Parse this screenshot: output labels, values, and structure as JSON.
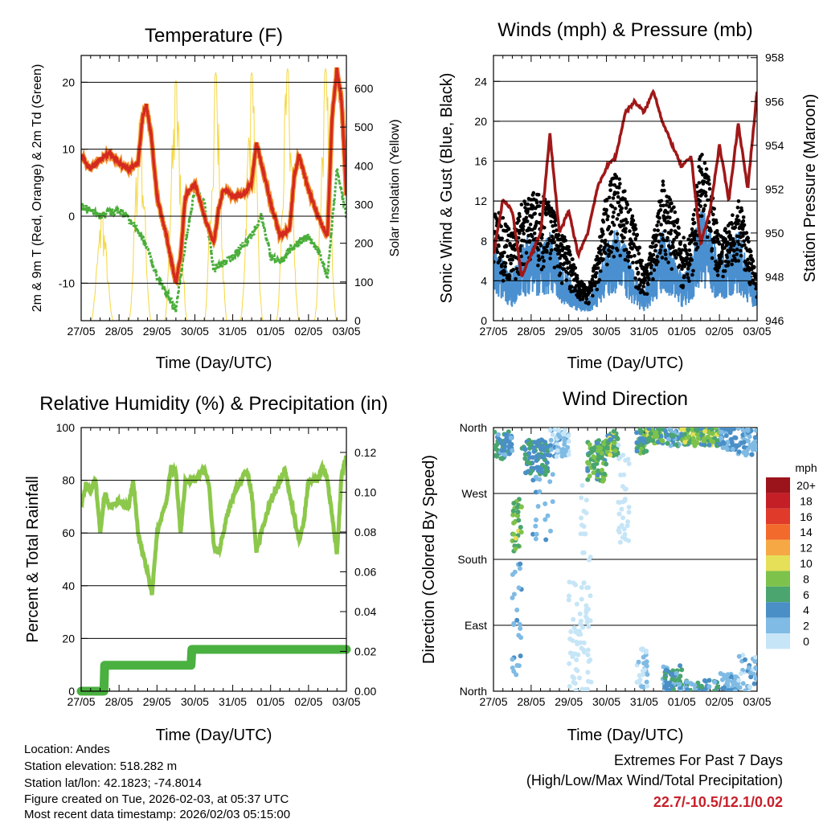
{
  "chart_data": [
    {
      "type": "line",
      "title": "Temperature (F)",
      "xlabel": "Time (Day/UTC)",
      "ylabel": "2m & 9m T (Red, Orange) & 2m Td (Green)",
      "ylabel_right": "Solar Insolation (Yellow)",
      "xlim": [
        0,
        7
      ],
      "ylim": [
        -15.6,
        24
      ],
      "ylim_right": [
        0,
        685
      ],
      "xticks": [
        "27/05",
        "28/05",
        "29/05",
        "30/05",
        "31/05",
        "01/05",
        "02/05",
        "03/05"
      ],
      "yticks": [
        {
          "v": -10,
          "label": "-10"
        },
        {
          "v": 0,
          "label": "0"
        },
        {
          "v": 10,
          "label": "10"
        },
        {
          "v": 20,
          "label": "20"
        }
      ],
      "yticks_right": [
        {
          "v": 0,
          "label": "0"
        },
        {
          "v": 100,
          "label": "100"
        },
        {
          "v": 200,
          "label": "200"
        },
        {
          "v": 300,
          "label": "300"
        },
        {
          "v": 400,
          "label": "400"
        },
        {
          "v": 500,
          "label": "500"
        },
        {
          "v": 600,
          "label": "600"
        }
      ],
      "grid": true,
      "series": [
        {
          "name": "2m/9m T",
          "color": "#d42a20",
          "x": [
            0,
            0.25,
            0.5,
            0.75,
            1.0,
            1.25,
            1.5,
            1.625,
            1.72,
            1.85,
            2.0,
            2.25,
            2.5,
            2.625,
            2.75,
            3.0,
            3.25,
            3.5,
            3.625,
            3.75,
            4.0,
            4.25,
            4.5,
            4.625,
            4.75,
            5.0,
            5.25,
            5.5,
            5.625,
            5.75,
            6.0,
            6.25,
            6.5,
            6.625,
            6.75,
            6.875,
            7.0
          ],
          "y": [
            9,
            7,
            8.5,
            9.5,
            8,
            7,
            8,
            15,
            16.5,
            12,
            3,
            -3,
            -10,
            -6,
            3,
            5,
            0,
            -4,
            1,
            4,
            3,
            3,
            5,
            11,
            8,
            2,
            -3,
            -2,
            6,
            9,
            4,
            0,
            -3,
            15,
            22,
            17,
            3
          ]
        },
        {
          "name": "2m Td",
          "color": "#4aad3a",
          "x": [
            0,
            0.5,
            1.0,
            1.5,
            1.75,
            2.0,
            2.5,
            2.75,
            3.0,
            3.25,
            3.5,
            4.0,
            4.5,
            4.75,
            5.0,
            5.25,
            5.5,
            6.0,
            6.25,
            6.5,
            6.75,
            7.0
          ],
          "y": [
            1.5,
            0,
            1,
            -2,
            -5,
            -9,
            -14,
            -4,
            4,
            2,
            -8,
            -6,
            -3,
            0,
            -6,
            -7,
            -5,
            -3,
            -5,
            -9,
            7,
            0
          ]
        },
        {
          "name": "Solar Insolation",
          "color": "#f5d742",
          "axis": "right",
          "peak_day": [
            0.55,
            1.55,
            2.5,
            3.55,
            4.5,
            5.45,
            6.45
          ],
          "peak_value": [
            280,
            520,
            620,
            640,
            640,
            650,
            650
          ]
        }
      ]
    },
    {
      "type": "line",
      "title": "Winds (mph) & Pressure (mb)",
      "xlabel": "Time (Day/UTC)",
      "ylabel": "Sonic Wind & Gust (Blue, Black)",
      "ylabel_right": "Station Pressure (Maroon)",
      "xlim": [
        0,
        7
      ],
      "ylim": [
        0,
        26.6
      ],
      "ylim_right": [
        946,
        958.1
      ],
      "xticks": [
        "27/05",
        "28/05",
        "29/05",
        "30/05",
        "31/05",
        "01/05",
        "02/05",
        "03/05"
      ],
      "yticks": [
        {
          "v": 0,
          "label": "0"
        },
        {
          "v": 4,
          "label": "4"
        },
        {
          "v": 8,
          "label": "8"
        },
        {
          "v": 12,
          "label": "12"
        },
        {
          "v": 16,
          "label": "16"
        },
        {
          "v": 20,
          "label": "20"
        },
        {
          "v": 24,
          "label": "24"
        }
      ],
      "yticks_right": [
        {
          "v": 946,
          "label": "946"
        },
        {
          "v": 948,
          "label": "948"
        },
        {
          "v": 950,
          "label": "950"
        },
        {
          "v": 952,
          "label": "952"
        },
        {
          "v": 954,
          "label": "954"
        },
        {
          "v": 956,
          "label": "956"
        },
        {
          "v": 958,
          "label": "958"
        }
      ],
      "grid": true,
      "x": [
        0,
        0.25,
        0.5,
        0.75,
        1.0,
        1.25,
        1.5,
        1.75,
        2.0,
        2.25,
        2.5,
        2.75,
        3.0,
        3.25,
        3.5,
        3.75,
        4.0,
        4.25,
        4.5,
        4.75,
        5.0,
        5.25,
        5.5,
        5.75,
        6.0,
        6.25,
        6.5,
        6.75,
        7.0
      ],
      "series": [
        {
          "name": "Sonic Wind",
          "color": "#4a90d0",
          "y": [
            5,
            4,
            3,
            5,
            6,
            5,
            6,
            4,
            3,
            2,
            1.5,
            3,
            5,
            6,
            5,
            3,
            2,
            4,
            6,
            5,
            3,
            4,
            8,
            6,
            4,
            5,
            6,
            4,
            2
          ]
        },
        {
          "name": "Gust",
          "color": "#000000",
          "y": [
            10,
            10,
            8,
            11,
            12,
            12,
            11,
            9,
            7,
            4,
            3,
            6,
            12,
            14,
            12,
            9,
            5,
            8,
            13,
            11,
            8,
            8,
            16,
            13,
            8,
            9,
            12,
            8,
            4
          ]
        },
        {
          "name": "Station Pressure",
          "color": "#a01818",
          "axis": "right",
          "y": [
            949,
            951.5,
            951,
            948,
            949,
            950,
            954.5,
            950,
            951,
            949,
            950,
            952,
            953,
            953.5,
            955.5,
            956,
            955.5,
            956.5,
            955,
            954,
            953,
            953.5,
            949.5,
            951,
            954,
            951.5,
            955,
            952,
            956.5
          ]
        }
      ]
    },
    {
      "type": "line",
      "title": "Relative Humidity (%) & Precipitation (in)",
      "xlabel": "Time (Day/UTC)",
      "ylabel": "Percent & Total Rainfall",
      "xlim": [
        0,
        7
      ],
      "ylim": [
        0,
        100
      ],
      "ylim_right": [
        0,
        0.1325
      ],
      "xticks": [
        "27/05",
        "28/05",
        "29/05",
        "30/05",
        "31/05",
        "01/05",
        "02/05",
        "03/05"
      ],
      "yticks": [
        {
          "v": 0,
          "label": "0"
        },
        {
          "v": 20,
          "label": "20"
        },
        {
          "v": 40,
          "label": "40"
        },
        {
          "v": 60,
          "label": "60"
        },
        {
          "v": 80,
          "label": "80"
        },
        {
          "v": 100,
          "label": "100"
        }
      ],
      "yticks_right": [
        {
          "v": 0,
          "label": "0.00"
        },
        {
          "v": 0.02,
          "label": "0.02"
        },
        {
          "v": 0.04,
          "label": "0.04"
        },
        {
          "v": 0.06,
          "label": "0.06"
        },
        {
          "v": 0.08,
          "label": "0.08"
        },
        {
          "v": 0.1,
          "label": "0.10"
        },
        {
          "v": 0.12,
          "label": "0.12"
        }
      ],
      "grid": true,
      "series": [
        {
          "name": "Relative Humidity",
          "color": "#8cc84b",
          "x": [
            0,
            0.125,
            0.25,
            0.375,
            0.5,
            0.625,
            0.75,
            1.0,
            1.25,
            1.375,
            1.5,
            1.75,
            1.875,
            2.0,
            2.25,
            2.375,
            2.5,
            2.625,
            2.75,
            3.0,
            3.25,
            3.375,
            3.5,
            3.625,
            3.875,
            4.125,
            4.375,
            4.5,
            4.625,
            4.75,
            5.0,
            5.25,
            5.375,
            5.5,
            5.75,
            5.875,
            6.0,
            6.25,
            6.375,
            6.5,
            6.75,
            6.875,
            7.0
          ],
          "y": [
            70,
            78,
            76,
            81,
            60,
            75,
            70,
            72,
            70,
            80,
            60,
            45,
            37,
            60,
            72,
            85,
            83,
            60,
            80,
            80,
            85,
            78,
            55,
            52,
            68,
            78,
            84,
            75,
            53,
            60,
            72,
            80,
            84,
            75,
            57,
            64,
            80,
            80,
            86,
            80,
            52,
            82,
            89
          ]
        },
        {
          "name": "Total Rainfall",
          "color": "#4ab040",
          "axis": "right",
          "x": [
            0,
            0.6,
            0.62,
            2.9,
            2.92,
            7.0
          ],
          "y": [
            0,
            0,
            0.013,
            0.013,
            0.021,
            0.021
          ]
        }
      ]
    },
    {
      "type": "scatter",
      "title": "Wind Direction",
      "xlabel": "Time (Day/UTC)",
      "ylabel": "Direction (Colored By Speed)",
      "xlim": [
        0,
        7
      ],
      "ylim": [
        0,
        360
      ],
      "xticks": [
        "27/05",
        "28/05",
        "29/05",
        "30/05",
        "31/05",
        "01/05",
        "02/05",
        "03/05"
      ],
      "yticks": [
        {
          "v": 0,
          "label": "North"
        },
        {
          "v": 90,
          "label": "East"
        },
        {
          "v": 180,
          "label": "South"
        },
        {
          "v": 270,
          "label": "West"
        },
        {
          "v": 360,
          "label": "North"
        }
      ],
      "grid": true,
      "clusters": [
        {
          "day": [
            0,
            0.5
          ],
          "dir": [
            315,
            355
          ],
          "speed": [
            3,
            7
          ],
          "n": 60
        },
        {
          "day": [
            0.5,
            0.75
          ],
          "dir": [
            190,
            265
          ],
          "speed": [
            6,
            11
          ],
          "n": 35
        },
        {
          "day": [
            0.5,
            0.75
          ],
          "dir": [
            20,
            180
          ],
          "speed": [
            2,
            5
          ],
          "n": 25
        },
        {
          "day": [
            0.75,
            1.5
          ],
          "dir": [
            295,
            345
          ],
          "speed": [
            4,
            8
          ],
          "n": 90
        },
        {
          "day": [
            1.0,
            1.6
          ],
          "dir": [
            200,
            300
          ],
          "speed": [
            2,
            5
          ],
          "n": 20
        },
        {
          "day": [
            1.5,
            2.0
          ],
          "dir": [
            320,
            358
          ],
          "speed": [
            0,
            5
          ],
          "n": 60
        },
        {
          "day": [
            2.0,
            2.6
          ],
          "dir": [
            0,
            150
          ],
          "speed": [
            0,
            2
          ],
          "n": 70
        },
        {
          "day": [
            2.3,
            2.6
          ],
          "dir": [
            170,
            300
          ],
          "speed": [
            0,
            2
          ],
          "n": 15
        },
        {
          "day": [
            2.5,
            3.0
          ],
          "dir": [
            285,
            345
          ],
          "speed": [
            5,
            10
          ],
          "n": 80
        },
        {
          "day": [
            3.0,
            3.3
          ],
          "dir": [
            320,
            355
          ],
          "speed": [
            5,
            11
          ],
          "n": 50
        },
        {
          "day": [
            3.3,
            3.6
          ],
          "dir": [
            200,
            340
          ],
          "speed": [
            0,
            2
          ],
          "n": 35
        },
        {
          "day": [
            3.8,
            4.1
          ],
          "dir": [
            5,
            60
          ],
          "speed": [
            0,
            3
          ],
          "n": 30
        },
        {
          "day": [
            3.8,
            4.1
          ],
          "dir": [
            325,
            358
          ],
          "speed": [
            4,
            9
          ],
          "n": 40
        },
        {
          "day": [
            4.1,
            4.5
          ],
          "dir": [
            338,
            360
          ],
          "speed": [
            5,
            11
          ],
          "n": 60
        },
        {
          "day": [
            4.5,
            5.0
          ],
          "dir": [
            0,
            35
          ],
          "speed": [
            2,
            8
          ],
          "n": 50
        },
        {
          "day": [
            4.5,
            5.0
          ],
          "dir": [
            335,
            360
          ],
          "speed": [
            2,
            7
          ],
          "n": 40
        },
        {
          "day": [
            5.0,
            6.0
          ],
          "dir": [
            335,
            360
          ],
          "speed": [
            5,
            11
          ],
          "n": 110
        },
        {
          "day": [
            5.0,
            6.0
          ],
          "dir": [
            0,
            15
          ],
          "speed": [
            3,
            8
          ],
          "n": 40
        },
        {
          "day": [
            6.0,
            6.5
          ],
          "dir": [
            330,
            360
          ],
          "speed": [
            2,
            6
          ],
          "n": 50
        },
        {
          "day": [
            6.0,
            6.5
          ],
          "dir": [
            0,
            25
          ],
          "speed": [
            2,
            5
          ],
          "n": 40
        },
        {
          "day": [
            6.5,
            7.0
          ],
          "dir": [
            320,
            360
          ],
          "speed": [
            2,
            6
          ],
          "n": 45
        },
        {
          "day": [
            6.5,
            7.0
          ],
          "dir": [
            0,
            50
          ],
          "speed": [
            1,
            5
          ],
          "n": 30
        }
      ],
      "legend": {
        "title": "mph",
        "placement": "right",
        "bins": [
          {
            "label": "20+",
            "color": "#9b141b"
          },
          {
            "label": "18",
            "color": "#c41e26"
          },
          {
            "label": "16",
            "color": "#e03a2b"
          },
          {
            "label": "14",
            "color": "#f26a2c"
          },
          {
            "label": "12",
            "color": "#f6a845"
          },
          {
            "label": "10",
            "color": "#e5e057"
          },
          {
            "label": "8",
            "color": "#7dc24b"
          },
          {
            "label": "6",
            "color": "#4aa56e"
          },
          {
            "label": "4",
            "color": "#4a8fc6"
          },
          {
            "label": "2",
            "color": "#7fbbe4"
          },
          {
            "label": "0",
            "color": "#c6e5f7"
          }
        ]
      }
    }
  ],
  "info": {
    "location": "Location: Andes",
    "elevation": "Station elevation: 518.282 m",
    "latlon": "Station lat/lon: 42.1823; -74.8014",
    "created": "Figure created on Tue, 2026-02-03, at 05:37 UTC",
    "timestamp": "Most recent data timestamp: 2026/02/03 05:15:00"
  },
  "extremes": {
    "title": "Extremes For Past 7 Days",
    "subtitle": "(High/Low/Max Wind/Total Precipitation)",
    "values": "22.7/-10.5/12.1/0.02",
    "color": "#c8202a"
  }
}
